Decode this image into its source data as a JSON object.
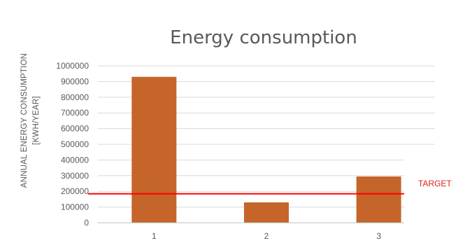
{
  "chart_data": {
    "type": "bar",
    "title": "Energy consumption",
    "ylabel_line1": "ANNUAL ENERGY CONSUMPTION",
    "ylabel_line2": "[KWH/YEAR]",
    "xlabel": "",
    "categories": [
      "1",
      "2",
      "3"
    ],
    "values": [
      930000,
      130000,
      295000
    ],
    "ylim": [
      0,
      1000000
    ],
    "yticks": [
      0,
      100000,
      200000,
      300000,
      400000,
      500000,
      600000,
      700000,
      800000,
      900000,
      1000000
    ],
    "ytick_labels": [
      "0",
      "100000",
      "200000",
      "300000",
      "400000",
      "500000",
      "600000",
      "700000",
      "800000",
      "900000",
      "1000000"
    ],
    "target": {
      "label": "TARGET",
      "value": 180000,
      "color": "#ff0000"
    },
    "bar_color": "#c5652a",
    "grid": true,
    "legend": "none"
  }
}
